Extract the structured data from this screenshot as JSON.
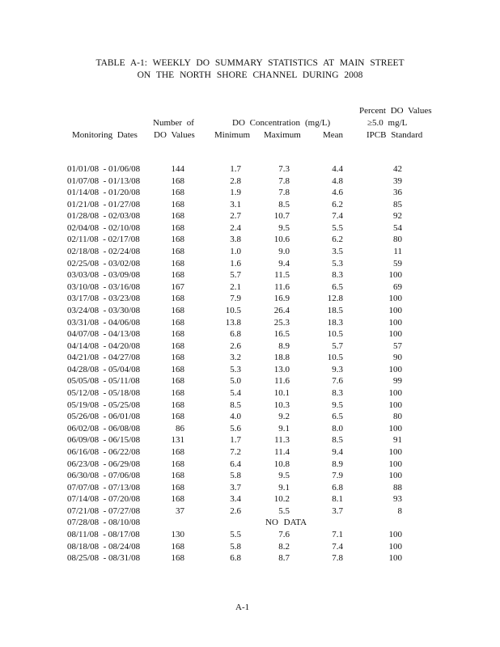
{
  "title": {
    "line1": "TABLE A-1: WEEKLY DO SUMMARY STATISTICS AT MAIN STREET",
    "line2": "ON THE NORTH SHORE CHANNEL DURING 2008"
  },
  "headers": {
    "dates": "Monitoring Dates",
    "count_line1": "Number of",
    "count_line2": "DO Values",
    "conc_group": "DO Concentration",
    "conc_unit": "(mg/L)",
    "min": "Minimum",
    "max": "Maximum",
    "mean": "Mean",
    "pct_line1": "Percent DO Values",
    "pct_line2": "≥5.0 mg/L",
    "pct_line3": "IPCB Standard"
  },
  "rows": [
    [
      "01/01/08  - 01/06/08",
      "144",
      "1.7",
      "7.3",
      "4.4",
      "42"
    ],
    [
      "01/07/08  - 01/13/08",
      "168",
      "2.8",
      "7.8",
      "4.8",
      "39"
    ],
    [
      "01/14/08  - 01/20/08",
      "168",
      "1.9",
      "7.8",
      "4.6",
      "36"
    ],
    [
      "01/21/08  - 01/27/08",
      "168",
      "3.1",
      "8.5",
      "6.2",
      "85"
    ],
    [
      "01/28/08  - 02/03/08",
      "168",
      "2.7",
      "10.7",
      "7.4",
      "92"
    ],
    [
      "02/04/08  - 02/10/08",
      "168",
      "2.4",
      "9.5",
      "5.5",
      "54"
    ],
    [
      "02/11/08  - 02/17/08",
      "168",
      "3.8",
      "10.6",
      "6.2",
      "80"
    ],
    [
      "02/18/08  - 02/24/08",
      "168",
      "1.0",
      "9.0",
      "3.5",
      "11"
    ],
    [
      "02/25/08  - 03/02/08",
      "168",
      "1.6",
      "9.4",
      "5.3",
      "59"
    ],
    [
      "03/03/08  - 03/09/08",
      "168",
      "5.7",
      "11.5",
      "8.3",
      "100"
    ],
    [
      "03/10/08  - 03/16/08",
      "167",
      "2.1",
      "11.6",
      "6.5",
      "69"
    ],
    [
      "03/17/08  - 03/23/08",
      "168",
      "7.9",
      "16.9",
      "12.8",
      "100"
    ],
    [
      "03/24/08  - 03/30/08",
      "168",
      "10.5",
      "26.4",
      "18.5",
      "100"
    ],
    [
      "03/31/08  - 04/06/08",
      "168",
      "13.8",
      "25.3",
      "18.3",
      "100"
    ],
    [
      "04/07/08  - 04/13/08",
      "168",
      "6.8",
      "16.5",
      "10.5",
      "100"
    ],
    [
      "04/14/08  - 04/20/08",
      "168",
      "2.6",
      "8.9",
      "5.7",
      "57"
    ],
    [
      "04/21/08  - 04/27/08",
      "168",
      "3.2",
      "18.8",
      "10.5",
      "90"
    ],
    [
      "04/28/08  - 05/04/08",
      "168",
      "5.3",
      "13.0",
      "9.3",
      "100"
    ],
    [
      "05/05/08  - 05/11/08",
      "168",
      "5.0",
      "11.6",
      "7.6",
      "99"
    ],
    [
      "05/12/08  - 05/18/08",
      "168",
      "5.4",
      "10.1",
      "8.3",
      "100"
    ],
    [
      "05/19/08  - 05/25/08",
      "168",
      "8.5",
      "10.3",
      "9.5",
      "100"
    ],
    [
      "05/26/08  - 06/01/08",
      "168",
      "4.0",
      "9.2",
      "6.5",
      "80"
    ],
    [
      "06/02/08  - 06/08/08",
      "86",
      "5.6",
      "9.1",
      "8.0",
      "100"
    ],
    [
      "06/09/08  - 06/15/08",
      "131",
      "1.7",
      "11.3",
      "8.5",
      "91"
    ],
    [
      "06/16/08  - 06/22/08",
      "168",
      "7.2",
      "11.4",
      "9.4",
      "100"
    ],
    [
      "06/23/08  - 06/29/08",
      "168",
      "6.4",
      "10.8",
      "8.9",
      "100"
    ],
    [
      "06/30/08  - 07/06/08",
      "168",
      "5.8",
      "9.5",
      "7.9",
      "100"
    ],
    [
      "07/07/08  - 07/13/08",
      "168",
      "3.7",
      "9.1",
      "6.8",
      "88"
    ],
    [
      "07/14/08  - 07/20/08",
      "168",
      "3.4",
      "10.2",
      "8.1",
      "93"
    ],
    [
      "07/21/08  - 07/27/08",
      "37",
      "2.6",
      "5.5",
      "3.7",
      "8"
    ],
    [
      "07/28/08  - 08/10/08",
      "NO DATA"
    ],
    [
      "08/11/08  - 08/17/08",
      "130",
      "5.5",
      "7.6",
      "7.1",
      "100"
    ],
    [
      "08/18/08  - 08/24/08",
      "168",
      "5.8",
      "8.2",
      "7.4",
      "100"
    ],
    [
      "08/25/08  - 08/31/08",
      "168",
      "6.8",
      "8.7",
      "7.8",
      "100"
    ]
  ],
  "footer": {
    "page": "A-1"
  }
}
